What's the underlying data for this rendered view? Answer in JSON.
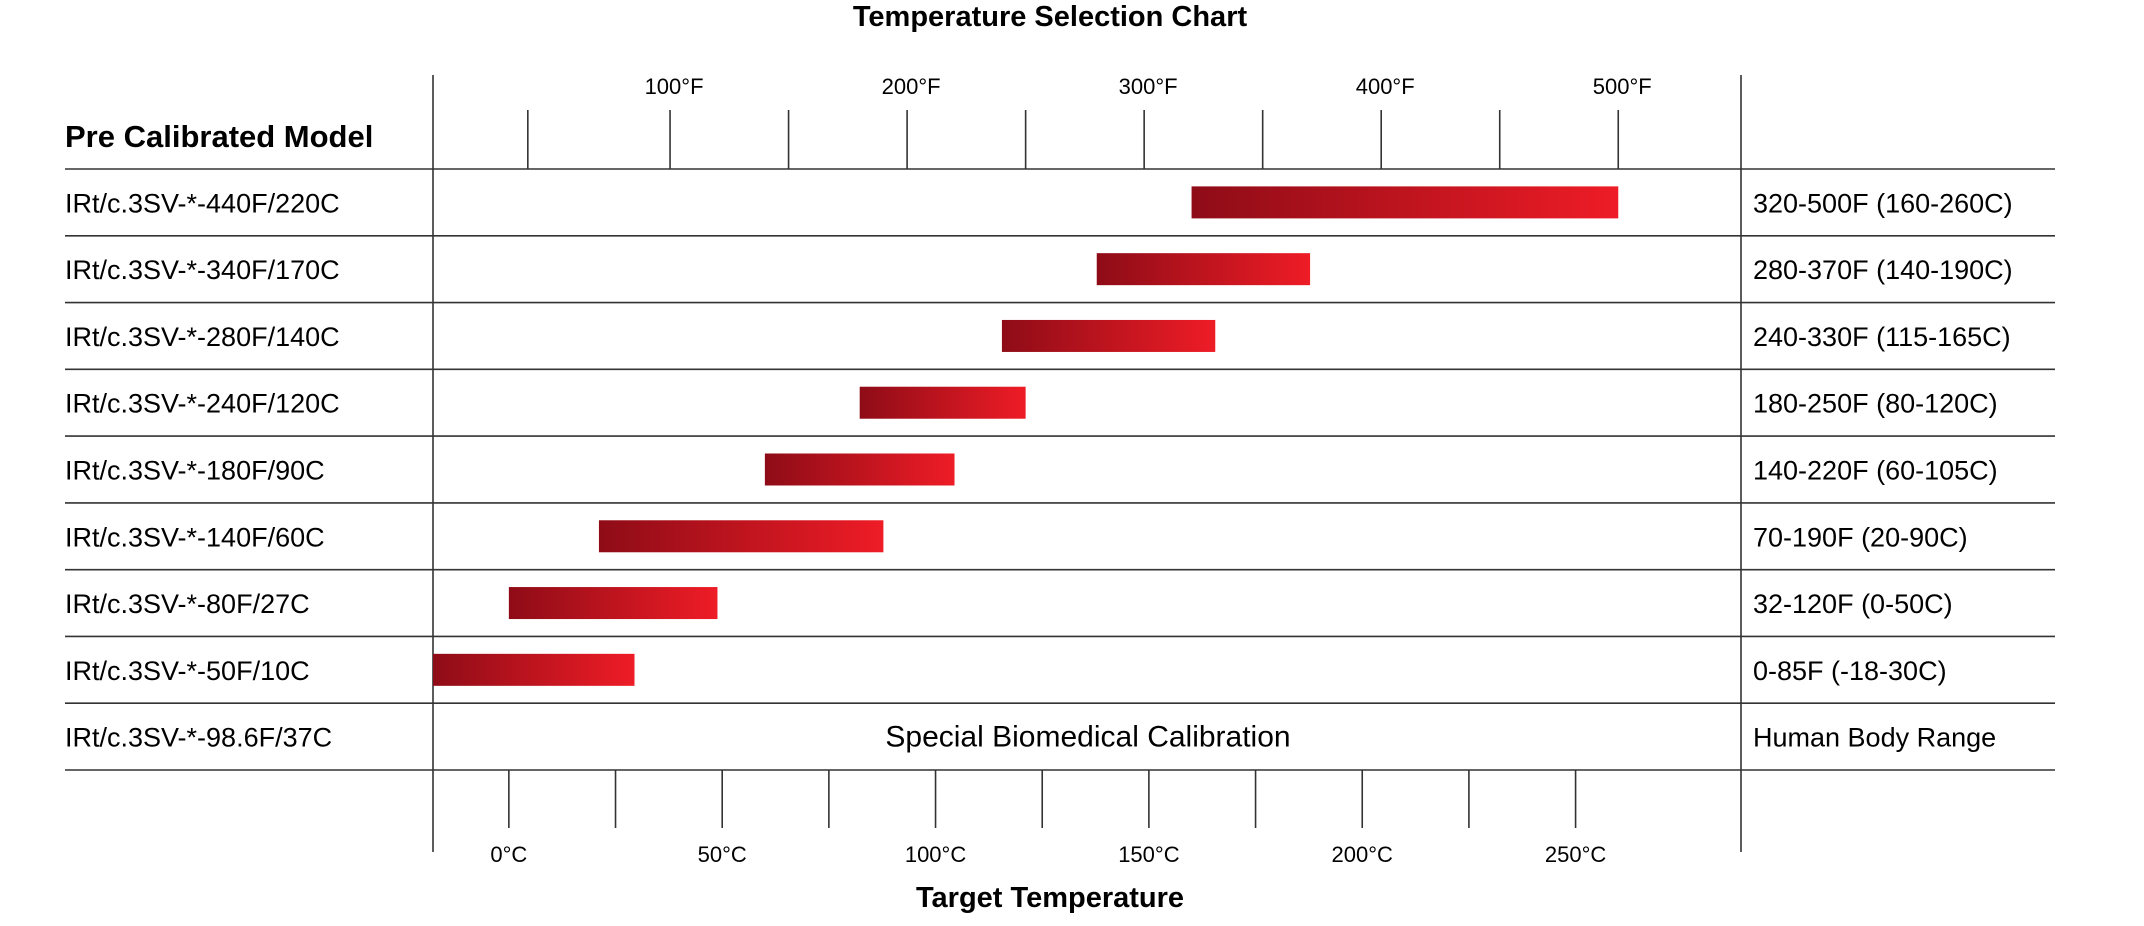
{
  "chart_data": {
    "type": "bar",
    "subtype": "floating-range",
    "title": "Temperature Selection Chart",
    "xlabel": "Target Temperature",
    "row_header": "Pre Calibrated Model",
    "top_axis": {
      "unit": "F",
      "range": [
        -25,
        600
      ],
      "tick_labels": [
        "100°F",
        "200°F",
        "300°F",
        "400°F",
        "500°F"
      ],
      "tick_label_values": [
        100,
        200,
        300,
        400,
        500
      ],
      "tick_values": [
        40,
        100,
        150,
        200,
        250,
        300,
        350,
        400,
        450,
        500
      ]
    },
    "bottom_axis": {
      "unit": "C",
      "tick_labels": [
        "0°C",
        "50°C",
        "100°C",
        "150°C",
        "200°C",
        "250°C"
      ],
      "tick_label_values": [
        0,
        50,
        100,
        150,
        200,
        250
      ],
      "tick_values": [
        0,
        25,
        50,
        75,
        100,
        125,
        150,
        175,
        200,
        225,
        250
      ]
    },
    "rows": [
      {
        "model": "IRt/c.3SV-*-440F/220C",
        "range_label": "320-500F (160-260C)",
        "min_f": 320,
        "max_f": 500
      },
      {
        "model": "IRt/c.3SV-*-340F/170C",
        "range_label": "280-370F (140-190C)",
        "min_f": 280,
        "max_f": 370
      },
      {
        "model": "IRt/c.3SV-*-280F/140C",
        "range_label": "240-330F (115-165C)",
        "min_f": 240,
        "max_f": 330
      },
      {
        "model": "IRt/c.3SV-*-240F/120C",
        "range_label": "180-250F (80-120C)",
        "min_f": 180,
        "max_f": 250
      },
      {
        "model": "IRt/c.3SV-*-180F/90C",
        "range_label": "140-220F (60-105C)",
        "min_f": 140,
        "max_f": 220
      },
      {
        "model": "IRt/c.3SV-*-140F/60C",
        "range_label": "70-190F (20-90C)",
        "min_f": 70,
        "max_f": 190
      },
      {
        "model": "IRt/c.3SV-*-80F/27C",
        "range_label": "32-120F (0-50C)",
        "min_f": 32,
        "max_f": 120
      },
      {
        "model": "IRt/c.3SV-*-50F/10C",
        "range_label": "0-85F (-18-30C)",
        "min_f": 0,
        "max_f": 85
      },
      {
        "model": "IRt/c.3SV-*-98.6F/37C",
        "range_label": "Human Body Range",
        "note": "Special Biomedical Calibration"
      }
    ],
    "colors": {
      "bar_start": "#8e0c17",
      "bar_end": "#ee1c26",
      "lines": "#333333"
    }
  }
}
